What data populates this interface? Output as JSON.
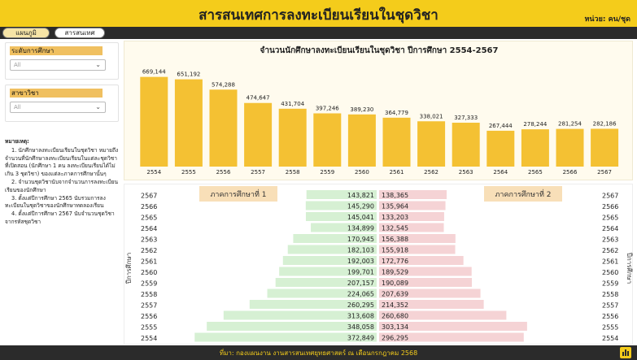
{
  "header": {
    "title": "สารสนเทศการลงทะเบียนเรียนในชุดวิชา",
    "unit": "หน่วย: คน/ชุด"
  },
  "nav": {
    "plan_label": "แผนภูมิ",
    "info_label": "สารสนเทศ"
  },
  "filters": {
    "level": {
      "label": "ระดับการศึกษา",
      "value": "All"
    },
    "field": {
      "label": "สาขาวิชา",
      "value": "All"
    }
  },
  "notes": {
    "heading": "หมายเหตุ:",
    "items": [
      "1. นักศึกษาลงทะเบียนเรียนในชุดวิชา หมายถึง จำนวนที่นักศึกษาลงทะเบียนเรียนในแต่ละชุดวิชาที่เปิดสอน (นักศึกษา 1 คน ลงทะเบียนเรียนได้ไม่เกิน 3 ชุดวิชา) ของแต่ละภาคการศึกษานั้นๆ",
      "2. จำนวนชุดวิชานับจากจำนวนการลงทะเบียนเรียนของนักศึกษา",
      "3. ตั้งแต่ปีการศึกษา 2565 นับรวมการลงทะเบียนในชุดวิชาของนักศึกษาทดลองเรียน",
      "4. ตั้งแต่ปีการศึกษา 2567 นับจำนวนชุดวิชาจากรหัสชุดวิชา"
    ]
  },
  "footer": {
    "text": "ที่มา: กองแผนงาน งานสารสนเทศยุทธศาสตร์ ณ เดือนกรกฎาคม 2568",
    "icon": "powerbi-icon"
  },
  "colors": {
    "bar": "#f4c133",
    "sem1": "#d6f0d3",
    "sem2": "#f5d3d5",
    "band": "#f8dfb8",
    "header": "#f4cc1b"
  },
  "chart_data": [
    {
      "type": "bar",
      "title": "จำนวนนักศึกษาลงทะเบียนเรียนในชุดวิชา ปีการศึกษา 2554-2567",
      "categories": [
        "2554",
        "2555",
        "2556",
        "2557",
        "2558",
        "2559",
        "2560",
        "2561",
        "2562",
        "2563",
        "2564",
        "2565",
        "2566",
        "2567"
      ],
      "values": [
        669144,
        651192,
        574288,
        474647,
        431704,
        397246,
        389230,
        364779,
        338021,
        327333,
        267444,
        278244,
        281254,
        282186
      ],
      "value_labels": [
        "669,144",
        "651,192",
        "574,288",
        "474,647",
        "431,704",
        "397,246",
        "389,230",
        "364,779",
        "338,021",
        "327,333",
        "267,444",
        "278,244",
        "281,254",
        "282,186"
      ],
      "ylim": [
        0,
        700000
      ]
    },
    {
      "type": "bar",
      "orientation": "horizontal-butterfly",
      "ylabel_left": "ปีการศึกษา",
      "ylabel_right": "ปีการศึกษา",
      "categories": [
        "2567",
        "2566",
        "2565",
        "2564",
        "2563",
        "2562",
        "2561",
        "2560",
        "2559",
        "2558",
        "2557",
        "2556",
        "2555",
        "2554"
      ],
      "series": [
        {
          "name": "ภาคการศึกษาที่ 1",
          "values": [
            143821,
            145290,
            145041,
            134899,
            170945,
            182103,
            192003,
            199701,
            207157,
            224065,
            260295,
            313608,
            348058,
            372849
          ],
          "value_labels": [
            "143,821",
            "145,290",
            "145,041",
            "134,899",
            "170,945",
            "182,103",
            "192,003",
            "199,701",
            "207,157",
            "224,065",
            "260,295",
            "313,608",
            "348,058",
            "372,849"
          ]
        },
        {
          "name": "ภาคการศึกษาที่ 2",
          "values": [
            138365,
            135964,
            133203,
            132545,
            156388,
            155918,
            172776,
            189529,
            190089,
            207639,
            214352,
            260680,
            303134,
            296295
          ],
          "value_labels": [
            "138,365",
            "135,964",
            "133,203",
            "132,545",
            "156,388",
            "155,918",
            "172,776",
            "189,529",
            "190,089",
            "207,639",
            "214,352",
            "260,680",
            "303,134",
            "296,295"
          ]
        }
      ]
    }
  ]
}
